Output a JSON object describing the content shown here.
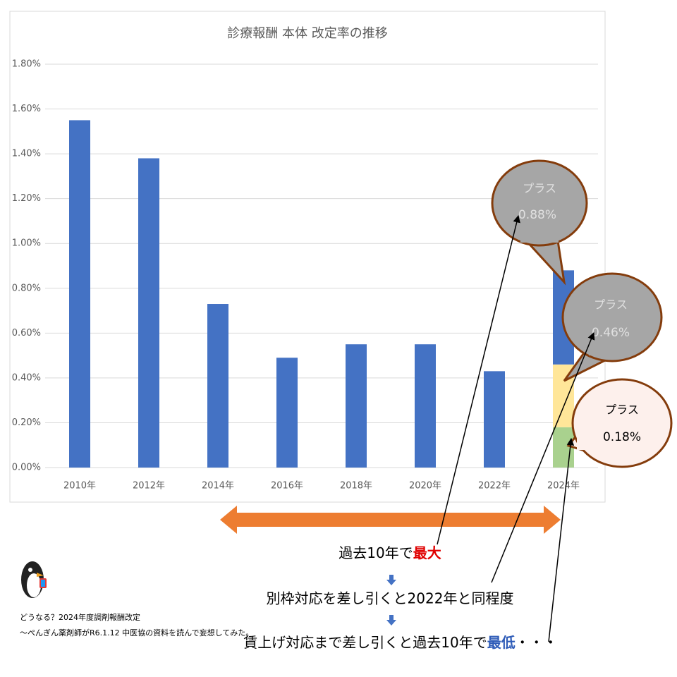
{
  "chart_data": {
    "type": "bar",
    "stacked": true,
    "title": "診療報酬 本体 改定率の推移",
    "categories": [
      "2010年",
      "2012年",
      "2014年",
      "2016年",
      "2018年",
      "2020年",
      "2022年",
      "2024年"
    ],
    "series": [
      {
        "color": "#a9d18e",
        "values": [
          null,
          null,
          null,
          null,
          null,
          null,
          null,
          0.18
        ]
      },
      {
        "color": "#ffe699",
        "values": [
          null,
          null,
          null,
          null,
          null,
          null,
          null,
          0.28
        ]
      },
      {
        "color": "#4472c4",
        "values": [
          1.55,
          1.38,
          0.73,
          0.49,
          0.55,
          0.55,
          0.43,
          0.42
        ]
      }
    ],
    "ylim": [
      0,
      1.8
    ],
    "yticks": [
      {
        "value": 0,
        "label": "0.00%"
      },
      {
        "value": 0.2,
        "label": "0.20%"
      },
      {
        "value": 0.4,
        "label": "0.40%"
      },
      {
        "value": 0.6,
        "label": "0.60%"
      },
      {
        "value": 0.8,
        "label": "0.80%"
      },
      {
        "value": 1.0,
        "label": "1.00%"
      },
      {
        "value": 1.2,
        "label": "1.20%"
      },
      {
        "value": 1.4,
        "label": "1.40%"
      },
      {
        "value": 1.6,
        "label": "1.60%"
      },
      {
        "value": 1.8,
        "label": "1.80%"
      }
    ],
    "grid": true,
    "callouts": [
      [
        "プラス",
        "0.88%"
      ],
      [
        "プラス",
        "0.46%"
      ],
      [
        "プラス",
        "0.18%"
      ]
    ],
    "notes": [
      [
        "過去10年で",
        "最大"
      ],
      [
        "別枠対応を差し引くと2022年と同程度"
      ],
      [
        "賃上げ対応まで差し引くと過去10年で",
        "最低",
        "・・・"
      ]
    ],
    "credits": [
      "どうなる？2024年度調剤報酬改定",
      "～ぺんぎん薬剤師がR6.1.12 中医協の資料を読んで妄想してみた。"
    ]
  }
}
